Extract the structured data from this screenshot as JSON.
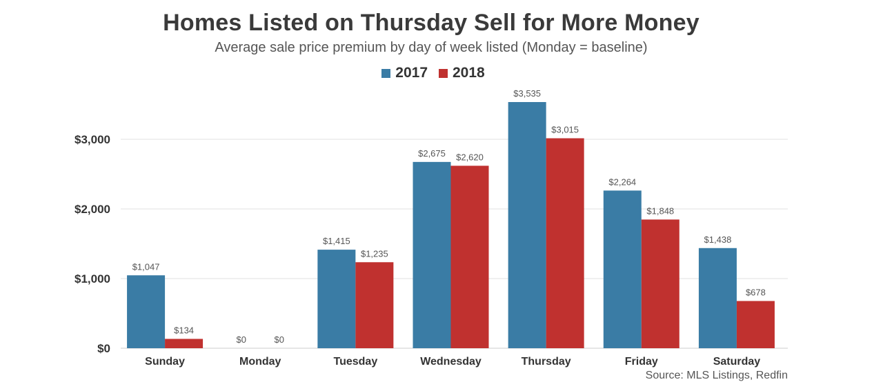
{
  "chart_data": {
    "type": "bar",
    "title": "Homes Listed on Thursday Sell for More Money",
    "subtitle": "Average sale price premium by day of week listed (Monday = baseline)",
    "categories": [
      "Sunday",
      "Monday",
      "Tuesday",
      "Wednesday",
      "Thursday",
      "Friday",
      "Saturday"
    ],
    "series": [
      {
        "name": "2017",
        "color": "#3a7ca5",
        "values": [
          1047,
          0,
          1415,
          2675,
          3535,
          2264,
          1438
        ],
        "labels": [
          "$1,047",
          "$0",
          "$1,415",
          "$2,675",
          "$3,535",
          "$2,264",
          "$1,438"
        ]
      },
      {
        "name": "2018",
        "color": "#c0312f",
        "values": [
          134,
          0,
          1235,
          2620,
          3015,
          1848,
          678
        ],
        "labels": [
          "$134",
          "$0",
          "$1,235",
          "$2,620",
          "$3,015",
          "$1,848",
          "$678"
        ]
      }
    ],
    "ylim": [
      0,
      3535
    ],
    "yticks": [
      0,
      1000,
      2000,
      3000
    ],
    "ytick_labels": [
      "$0",
      "$1,000",
      "$2,000",
      "$3,000"
    ],
    "grid": true,
    "legend_position": "top-center",
    "source": "Source: MLS Listings, Redfin"
  }
}
